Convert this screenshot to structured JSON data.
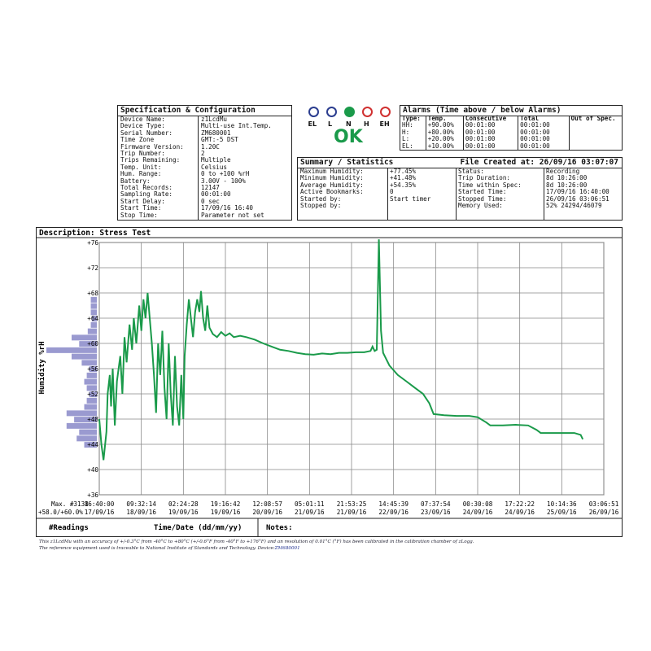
{
  "spec": {
    "title": "Specification & Configuration",
    "rows": [
      {
        "k": "Device Name:",
        "v": "z1LcdMu"
      },
      {
        "k": "Device Type:",
        "v": "Multi-use Int.Temp."
      },
      {
        "k": "Serial Number:",
        "v": "ZM680001"
      },
      {
        "k": "Time Zone",
        "v": "GMT:-5 DST"
      },
      {
        "k": "Firmware Version:",
        "v": "1.20C"
      },
      {
        "k": "Trip Number:",
        "v": "2"
      },
      {
        "k": "Trips Remaining:",
        "v": "Multiple"
      },
      {
        "k": "Temp. Unit:",
        "v": "Celsius"
      },
      {
        "k": "Hum. Range:",
        "v": "0 to +100 %rH"
      },
      {
        "k": "Battery:",
        "v": "3.00V - 100%"
      },
      {
        "k": "Total Records:",
        "v": "12147"
      },
      {
        "k": "Sampling Rate:",
        "v": "00:01:00"
      },
      {
        "k": "Start Delay:",
        "v": "0 sec"
      },
      {
        "k": "Start Time:",
        "v": "17/09/16 16:40"
      },
      {
        "k": "Stop Time:",
        "v": "Parameter not set"
      }
    ]
  },
  "levels": {
    "labels": [
      "EL",
      "L",
      "N",
      "H",
      "EH"
    ],
    "colors": [
      "#2b3d8f",
      "#2b3d8f",
      "#1a9a4a",
      "#d03030",
      "#d03030"
    ],
    "active": "N",
    "status": "OK"
  },
  "alarms": {
    "title": "Alarms (Time above / below Alarms)",
    "headers": [
      "Type:",
      "Temp.",
      "Consecutive",
      "Total",
      "Out of Spec."
    ],
    "rows": [
      [
        "HH:",
        "+90.00%",
        "00:01:00",
        "00:01:00"
      ],
      [
        "H:",
        "+80.00%",
        "00:01:00",
        "00:01:00"
      ],
      [
        "L:",
        "+20.00%",
        "00:01:00",
        "00:01:00"
      ],
      [
        "EL:",
        "+10.00%",
        "00:01:00",
        "00:01:00"
      ]
    ]
  },
  "summary": {
    "title": "Summary / Statistics",
    "file_created": "File Created at: 26/09/16 03:07:07",
    "left": [
      {
        "k": "Maximum Humidity:",
        "v": "+77.45%"
      },
      {
        "k": "Minimum Humidity:",
        "v": "+41.48%"
      },
      {
        "k": "Average Humidity:",
        "v": "+54.35%"
      },
      {
        "k": "Active Bookmarks:",
        "v": "0"
      },
      {
        "k": "Started by:",
        "v": "Start timer"
      },
      {
        "k": "Stopped by:",
        "v": ""
      }
    ],
    "right": [
      {
        "k": "Status:",
        "v": "Recording"
      },
      {
        "k": "Trip Duration:",
        "v": "8d 10:26:00"
      },
      {
        "k": "Time within Spec:",
        "v": "8d 10:26:00"
      },
      {
        "k": "Started Time:",
        "v": "17/09/16 16:40:00"
      },
      {
        "k": "Stopped Time:",
        "v": "26/09/16 03:06:51"
      },
      {
        "k": "Memory Used:",
        "v": "52% 24294/46079"
      }
    ]
  },
  "description": "Description: Stress Test",
  "bottom": {
    "max_label": "Max. #3138",
    "max_value": "+58.0/+60.0%",
    "readings_label": "#Readings",
    "xlabel": "Time/Date (dd/mm/yy)",
    "notes_label": "Notes:"
  },
  "footer": {
    "line1": "This z1LcdMu with an accuracy of +/-0.3°C from -40°C to +80°C (+/-0.6°F from -40°F to +176°F) and an resolution of 0.01°C (°F) has been calibrated in the calibration chamber of zLogg.",
    "line2_prefix": "The reference equipment used is traceable to National Institute of Standards and Technology. Device:",
    "line2_device": "ZM680001"
  },
  "chart_data": {
    "type": "line",
    "ylabel": "Humidity %rH",
    "ylim": [
      36,
      76
    ],
    "yticks": [
      "+36",
      "+40",
      "+44",
      "+48",
      "+52",
      "+56",
      "+60",
      "+64",
      "+68",
      "+72",
      "+76"
    ],
    "xticks": [
      {
        "time": "16:40:00",
        "date": "17/09/16"
      },
      {
        "time": "09:32:14",
        "date": "18/09/16"
      },
      {
        "time": "02:24:28",
        "date": "19/09/16"
      },
      {
        "time": "19:16:42",
        "date": "19/09/16"
      },
      {
        "time": "12:08:57",
        "date": "20/09/16"
      },
      {
        "time": "05:01:11",
        "date": "21/09/16"
      },
      {
        "time": "21:53:25",
        "date": "21/09/16"
      },
      {
        "time": "14:45:39",
        "date": "22/09/16"
      },
      {
        "time": "07:37:54",
        "date": "23/09/16"
      },
      {
        "time": "00:30:08",
        "date": "24/09/16"
      },
      {
        "time": "17:22:22",
        "date": "24/09/16"
      },
      {
        "time": "10:14:36",
        "date": "25/09/16"
      },
      {
        "time": "03:06:51",
        "date": "26/09/16"
      }
    ],
    "series_color": "#1a9a4a",
    "series": [
      {
        "points": [
          [
            0,
            48
          ],
          [
            0.05,
            44
          ],
          [
            0.1,
            41.5
          ],
          [
            0.17,
            46
          ],
          [
            0.2,
            52
          ],
          [
            0.25,
            55
          ],
          [
            0.28,
            50
          ],
          [
            0.32,
            56
          ],
          [
            0.37,
            47
          ],
          [
            0.42,
            54
          ],
          [
            0.5,
            58
          ],
          [
            0.55,
            52
          ],
          [
            0.6,
            61
          ],
          [
            0.65,
            57
          ],
          [
            0.72,
            63
          ],
          [
            0.78,
            59
          ],
          [
            0.82,
            64
          ],
          [
            0.88,
            60
          ],
          [
            0.95,
            66
          ],
          [
            1.0,
            62
          ],
          [
            1.05,
            67
          ],
          [
            1.1,
            64
          ],
          [
            1.15,
            68
          ],
          [
            1.2,
            64
          ],
          [
            1.25,
            60
          ],
          [
            1.3,
            55
          ],
          [
            1.35,
            49
          ],
          [
            1.4,
            60
          ],
          [
            1.45,
            55
          ],
          [
            1.5,
            62
          ],
          [
            1.55,
            53
          ],
          [
            1.6,
            48
          ],
          [
            1.65,
            60
          ],
          [
            1.7,
            52
          ],
          [
            1.75,
            47
          ],
          [
            1.8,
            58
          ],
          [
            1.85,
            50
          ],
          [
            1.9,
            47
          ],
          [
            1.95,
            55
          ],
          [
            2.0,
            48
          ],
          [
            2.03,
            58
          ],
          [
            2.08,
            63
          ],
          [
            2.13,
            67
          ],
          [
            2.18,
            64
          ],
          [
            2.23,
            61
          ],
          [
            2.28,
            65
          ],
          [
            2.33,
            67
          ],
          [
            2.38,
            65
          ],
          [
            2.42,
            68.3
          ],
          [
            2.47,
            64
          ],
          [
            2.52,
            62
          ],
          [
            2.57,
            66
          ],
          [
            2.62,
            62.5
          ],
          [
            2.7,
            61.5
          ],
          [
            2.8,
            61
          ],
          [
            2.9,
            61.8
          ],
          [
            3.0,
            61.2
          ],
          [
            3.1,
            61.6
          ],
          [
            3.2,
            61
          ],
          [
            3.35,
            61.2
          ],
          [
            3.5,
            61
          ],
          [
            3.7,
            60.6
          ],
          [
            3.9,
            60
          ],
          [
            4.1,
            59.5
          ],
          [
            4.3,
            59
          ],
          [
            4.5,
            58.8
          ],
          [
            4.7,
            58.5
          ],
          [
            4.9,
            58.3
          ],
          [
            5.1,
            58.2
          ],
          [
            5.3,
            58.4
          ],
          [
            5.5,
            58.3
          ],
          [
            5.7,
            58.5
          ],
          [
            5.9,
            58.5
          ],
          [
            6.1,
            58.6
          ],
          [
            6.3,
            58.6
          ],
          [
            6.45,
            58.8
          ],
          [
            6.5,
            59.5
          ],
          [
            6.55,
            58.8
          ],
          [
            6.6,
            59
          ],
          [
            6.65,
            76.5
          ],
          [
            6.7,
            62
          ],
          [
            6.75,
            58.5
          ],
          [
            6.9,
            56.5
          ],
          [
            7.1,
            55
          ],
          [
            7.3,
            54
          ],
          [
            7.5,
            53
          ],
          [
            7.7,
            52
          ],
          [
            7.85,
            50.5
          ],
          [
            7.95,
            48.8
          ],
          [
            8.2,
            48.6
          ],
          [
            8.5,
            48.5
          ],
          [
            8.8,
            48.5
          ],
          [
            9.0,
            48.3
          ],
          [
            9.2,
            47.5
          ],
          [
            9.3,
            47
          ],
          [
            9.6,
            47
          ],
          [
            9.9,
            47.1
          ],
          [
            10.2,
            47
          ],
          [
            10.4,
            46.3
          ],
          [
            10.5,
            45.8
          ],
          [
            10.9,
            45.8
          ],
          [
            11.3,
            45.8
          ],
          [
            11.45,
            45.5
          ],
          [
            11.5,
            44.8
          ]
        ]
      }
    ],
    "histogram": [
      {
        "y": 67,
        "w": 0.12
      },
      {
        "y": 66,
        "w": 0.12
      },
      {
        "y": 65,
        "w": 0.12
      },
      {
        "y": 64,
        "w": 0.1
      },
      {
        "y": 63,
        "w": 0.12
      },
      {
        "y": 62,
        "w": 0.18
      },
      {
        "y": 61,
        "w": 0.5
      },
      {
        "y": 60,
        "w": 0.35
      },
      {
        "y": 59,
        "w": 1.0
      },
      {
        "y": 58,
        "w": 0.5
      },
      {
        "y": 57,
        "w": 0.3
      },
      {
        "y": 56,
        "w": 0.15
      },
      {
        "y": 55,
        "w": 0.2
      },
      {
        "y": 54,
        "w": 0.25
      },
      {
        "y": 53,
        "w": 0.2
      },
      {
        "y": 52,
        "w": 0.15
      },
      {
        "y": 51,
        "w": 0.2
      },
      {
        "y": 50,
        "w": 0.25
      },
      {
        "y": 49,
        "w": 0.6
      },
      {
        "y": 48,
        "w": 0.45
      },
      {
        "y": 47,
        "w": 0.6
      },
      {
        "y": 46,
        "w": 0.35
      },
      {
        "y": 45,
        "w": 0.4
      },
      {
        "y": 44,
        "w": 0.25
      }
    ]
  }
}
